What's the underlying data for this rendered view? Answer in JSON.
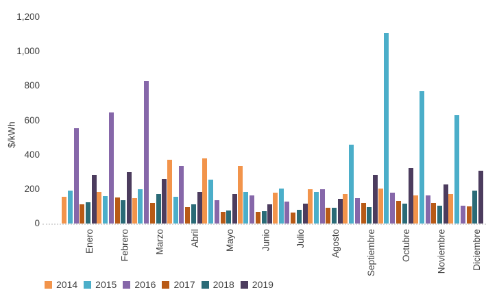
{
  "chart_data": {
    "type": "bar",
    "title": "",
    "ylabel": "$/kWh",
    "xlabel": "",
    "categories": [
      "Enero",
      "Febrero",
      "Marzo",
      "Abril",
      "Mayo",
      "Junio",
      "Julio",
      "Agosto",
      "Septiembre",
      "Octubre",
      "Noviembre",
      "Diciembre"
    ],
    "series": [
      {
        "name": "2014",
        "color": "#F2944B",
        "values": [
          155,
          185,
          148,
          370,
          380,
          333,
          178,
          198,
          172,
          205,
          165,
          172
        ]
      },
      {
        "name": "2015",
        "color": "#4BAEC9",
        "values": [
          190,
          160,
          200,
          155,
          255,
          183,
          205,
          182,
          458,
          1110,
          770,
          630
        ]
      },
      {
        "name": "2016",
        "color": "#8667A9",
        "values": [
          555,
          645,
          830,
          335,
          137,
          165,
          126,
          199,
          148,
          180,
          165,
          103
        ]
      },
      {
        "name": "2017",
        "color": "#B85A16",
        "values": [
          110,
          150,
          120,
          95,
          68,
          67,
          65,
          90,
          120,
          133,
          120,
          98
        ]
      },
      {
        "name": "2018",
        "color": "#2A6B77",
        "values": [
          125,
          135,
          170,
          112,
          75,
          72,
          80,
          92,
          95,
          116,
          102,
          190
        ]
      },
      {
        "name": "2019",
        "color": "#4C3C5E",
        "values": [
          285,
          300,
          260,
          185,
          170,
          110,
          117,
          145,
          285,
          322,
          227,
          308
        ]
      }
    ],
    "y_axis": {
      "min": 0,
      "max": 1200,
      "step": 200,
      "tick_labels": [
        "0",
        "200",
        "400",
        "600",
        "800",
        "1,000",
        "1,200"
      ]
    },
    "legend_position": "bottom",
    "grid": false,
    "axis_text_color": "#404040",
    "baseline_color": "#d9d9d9"
  }
}
